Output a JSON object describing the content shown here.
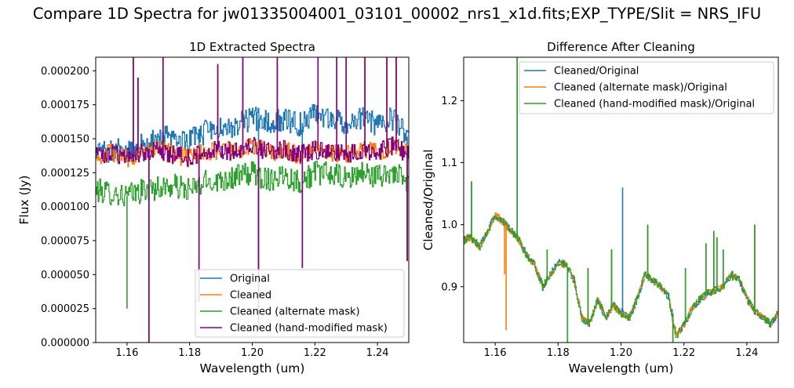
{
  "figure": {
    "suptitle": "Compare 1D Spectra for jw01335004001_03101_00002_nrs1_x1d.fits;EXP_TYPE/Slit = NRS_IFU"
  },
  "chart_data": [
    {
      "type": "line",
      "title": "1D Extracted Spectra",
      "xlabel": "Wavelength (um)",
      "ylabel": "Flux (Jy)",
      "xlim": [
        1.15,
        1.25
      ],
      "ylim": [
        0,
        0.00021
      ],
      "xticks": [
        1.16,
        1.18,
        1.2,
        1.22,
        1.24
      ],
      "xtick_labels": [
        "1.16",
        "1.18",
        "1.20",
        "1.22",
        "1.24"
      ],
      "yticks": [
        0,
        2.5e-05,
        5e-05,
        7.5e-05,
        0.0001,
        0.000125,
        0.00015,
        0.000175,
        0.0002
      ],
      "ytick_labels": [
        "0.000000",
        "0.000025",
        "0.000050",
        "0.000075",
        "0.000100",
        "0.000125",
        "0.000150",
        "0.000175",
        "0.000200"
      ],
      "legend_position": "lower-right",
      "grid": false,
      "spikes": [
        {
          "x": 1.16,
          "y": 2.5e-05,
          "series": [
            2
          ]
        },
        {
          "x": 1.162,
          "y": 0.00021,
          "series": [
            0,
            1,
            3
          ]
        },
        {
          "x": 1.1635,
          "y": 0.000195,
          "series": [
            0,
            1,
            3
          ]
        },
        {
          "x": 1.167,
          "y": 0.0,
          "series": [
            0,
            1,
            2,
            3
          ]
        },
        {
          "x": 1.1715,
          "y": 0.00021,
          "series": [
            0,
            1,
            3
          ]
        },
        {
          "x": 1.183,
          "y": 3e-05,
          "series": [
            0,
            1,
            2,
            3
          ]
        },
        {
          "x": 1.189,
          "y": 0.000205,
          "series": [
            0,
            1,
            3
          ]
        },
        {
          "x": 1.197,
          "y": 0.00021,
          "series": [
            0,
            1,
            3
          ]
        },
        {
          "x": 1.202,
          "y": 1e-05,
          "series": [
            0,
            1,
            2,
            3
          ]
        },
        {
          "x": 1.208,
          "y": 0.00021,
          "series": [
            0,
            1,
            3
          ]
        },
        {
          "x": 1.216,
          "y": 5.5e-05,
          "series": [
            0,
            1,
            2,
            3
          ]
        },
        {
          "x": 1.221,
          "y": 0.00021,
          "series": [
            0,
            1,
            3
          ]
        },
        {
          "x": 1.227,
          "y": 0.00021,
          "series": [
            0,
            1,
            3
          ]
        },
        {
          "x": 1.23,
          "y": 0.00021,
          "series": [
            0,
            1,
            3
          ]
        },
        {
          "x": 1.236,
          "y": 0.00021,
          "series": [
            0,
            1,
            3
          ]
        },
        {
          "x": 1.243,
          "y": 0.00021,
          "series": [
            0,
            1,
            3
          ]
        },
        {
          "x": 1.246,
          "y": 0.00021,
          "series": [
            0,
            1,
            3
          ]
        },
        {
          "x": 1.2495,
          "y": 6e-05,
          "series": [
            0,
            1,
            2,
            3
          ]
        }
      ],
      "series": [
        {
          "name": "Original",
          "color": "#1f77b4",
          "width": 1.2,
          "x": [
            1.15,
            1.155,
            1.16,
            1.165,
            1.17,
            1.175,
            1.18,
            1.185,
            1.19,
            1.195,
            1.2,
            1.205,
            1.21,
            1.215,
            1.22,
            1.225,
            1.23,
            1.235,
            1.24,
            1.245,
            1.25
          ],
          "y": [
            0.00014,
            0.000142,
            0.00014,
            0.000145,
            0.00015,
            0.000152,
            0.000148,
            0.000155,
            0.000158,
            0.00016,
            0.000165,
            0.000162,
            0.000165,
            0.00016,
            0.000168,
            0.000166,
            0.000162,
            0.000165,
            0.00016,
            0.000165,
            0.00015
          ],
          "noise": 9e-06
        },
        {
          "name": "Cleaned",
          "color": "#ff7f0e",
          "width": 1.2,
          "x": [
            1.15,
            1.155,
            1.16,
            1.165,
            1.17,
            1.175,
            1.18,
            1.185,
            1.19,
            1.195,
            1.2,
            1.205,
            1.21,
            1.215,
            1.22,
            1.225,
            1.23,
            1.235,
            1.24,
            1.245,
            1.25
          ],
          "y": [
            0.000138,
            0.00014,
            0.000136,
            0.00014,
            0.000142,
            0.000138,
            0.000136,
            0.00014,
            0.000142,
            0.00014,
            0.000145,
            0.00014,
            0.000142,
            0.000138,
            0.000142,
            0.00014,
            0.000138,
            0.000142,
            0.00014,
            0.000145,
            0.000138
          ],
          "noise": 7e-06
        },
        {
          "name": "Cleaned (alternate mask)",
          "color": "#2ca02c",
          "width": 1.2,
          "x": [
            1.15,
            1.155,
            1.16,
            1.165,
            1.17,
            1.175,
            1.18,
            1.185,
            1.19,
            1.195,
            1.2,
            1.205,
            1.21,
            1.215,
            1.22,
            1.225,
            1.23,
            1.235,
            1.24,
            1.245,
            1.25
          ],
          "y": [
            0.000112,
            0.00011,
            0.000108,
            0.000112,
            0.000114,
            0.000115,
            0.000112,
            0.000118,
            0.00012,
            0.000122,
            0.000125,
            0.00012,
            0.000124,
            0.000118,
            0.000125,
            0.000124,
            0.00012,
            0.000125,
            0.000122,
            0.000126,
            0.000115
          ],
          "noise": 9e-06
        },
        {
          "name": "Cleaned (hand-modified mask)",
          "color": "#800080",
          "width": 1.2,
          "x": [
            1.15,
            1.155,
            1.16,
            1.165,
            1.17,
            1.175,
            1.18,
            1.185,
            1.19,
            1.195,
            1.2,
            1.205,
            1.21,
            1.215,
            1.22,
            1.225,
            1.23,
            1.235,
            1.24,
            1.245,
            1.25
          ],
          "y": [
            0.000138,
            0.00014,
            0.000136,
            0.00014,
            0.000142,
            0.000138,
            0.000136,
            0.00014,
            0.000142,
            0.00014,
            0.000145,
            0.00014,
            0.000142,
            0.000138,
            0.000142,
            0.00014,
            0.000138,
            0.000142,
            0.00014,
            0.000145,
            0.000138
          ],
          "noise": 7e-06
        }
      ]
    },
    {
      "type": "line",
      "title": "Difference After Cleaning",
      "xlabel": "Wavelength (um)",
      "ylabel": "Cleaned/Original",
      "xlim": [
        1.15,
        1.25
      ],
      "ylim": [
        0.81,
        1.27
      ],
      "xticks": [
        1.16,
        1.18,
        1.2,
        1.22,
        1.24
      ],
      "xtick_labels": [
        "1.16",
        "1.18",
        "1.20",
        "1.22",
        "1.24"
      ],
      "yticks": [
        0.9,
        1.0,
        1.1,
        1.2
      ],
      "ytick_labels": [
        "0.9",
        "1.0",
        "1.1",
        "1.2"
      ],
      "legend_position": "top-right",
      "grid": false,
      "spikes": [
        {
          "x": 1.1525,
          "y": 1.07,
          "series": [
            0,
            2
          ]
        },
        {
          "x": 1.163,
          "y": 0.92,
          "series": [
            1
          ]
        },
        {
          "x": 1.1635,
          "y": 0.83,
          "series": [
            1
          ]
        },
        {
          "x": 1.167,
          "y": 1.27,
          "series": [
            0,
            1,
            2
          ]
        },
        {
          "x": 1.1765,
          "y": 0.96,
          "series": [
            0,
            1,
            2
          ]
        },
        {
          "x": 1.183,
          "y": 0.81,
          "series": [
            0,
            2
          ]
        },
        {
          "x": 1.1895,
          "y": 0.93,
          "series": [
            0,
            1,
            2
          ]
        },
        {
          "x": 1.197,
          "y": 0.96,
          "series": [
            0,
            1,
            2
          ]
        },
        {
          "x": 1.2005,
          "y": 1.06,
          "series": [
            0
          ]
        },
        {
          "x": 1.2085,
          "y": 1.0,
          "series": [
            0,
            1,
            2
          ]
        },
        {
          "x": 1.2165,
          "y": 0.81,
          "series": [
            0,
            1,
            2
          ]
        },
        {
          "x": 1.2205,
          "y": 0.93,
          "series": [
            0,
            1,
            2
          ]
        },
        {
          "x": 1.227,
          "y": 0.97,
          "series": [
            0,
            1,
            2
          ]
        },
        {
          "x": 1.2295,
          "y": 0.99,
          "series": [
            0,
            1,
            2
          ]
        },
        {
          "x": 1.2305,
          "y": 0.98,
          "series": [
            0,
            1,
            2
          ]
        },
        {
          "x": 1.2325,
          "y": 0.96,
          "series": [
            0,
            1,
            2
          ]
        },
        {
          "x": 1.2355,
          "y": 0.91,
          "series": [
            0,
            1,
            2
          ]
        },
        {
          "x": 1.2425,
          "y": 1.0,
          "series": [
            0,
            1,
            2
          ]
        }
      ],
      "series": [
        {
          "name": "Cleaned/Original",
          "color": "#1f77b4",
          "width": 1.2,
          "x": [
            1.15,
            1.152,
            1.155,
            1.1575,
            1.16,
            1.1625,
            1.165,
            1.1675,
            1.17,
            1.1725,
            1.175,
            1.1775,
            1.18,
            1.1825,
            1.185,
            1.1875,
            1.19,
            1.1925,
            1.195,
            1.1975,
            1.2,
            1.2025,
            1.205,
            1.2075,
            1.21,
            1.2125,
            1.215,
            1.2175,
            1.22,
            1.2225,
            1.225,
            1.2275,
            1.23,
            1.2325,
            1.235,
            1.2375,
            1.24,
            1.2425,
            1.245,
            1.2475,
            1.25
          ],
          "y": [
            0.975,
            0.98,
            0.965,
            0.99,
            1.015,
            1.005,
            0.99,
            0.975,
            0.95,
            0.935,
            0.9,
            0.92,
            0.94,
            0.935,
            0.91,
            0.85,
            0.84,
            0.88,
            0.85,
            0.87,
            0.86,
            0.85,
            0.88,
            0.92,
            0.91,
            0.9,
            0.885,
            0.82,
            0.84,
            0.865,
            0.88,
            0.89,
            0.895,
            0.9,
            0.92,
            0.91,
            0.88,
            0.86,
            0.85,
            0.84,
            0.86
          ],
          "noise": 0.006
        },
        {
          "name": "Cleaned (alternate mask)/Original",
          "color": "#ff7f0e",
          "width": 1.2,
          "x": [
            1.15,
            1.152,
            1.155,
            1.1575,
            1.16,
            1.1625,
            1.165,
            1.1675,
            1.17,
            1.1725,
            1.175,
            1.1775,
            1.18,
            1.1825,
            1.185,
            1.1875,
            1.19,
            1.1925,
            1.195,
            1.1975,
            1.2,
            1.2025,
            1.205,
            1.2075,
            1.21,
            1.2125,
            1.215,
            1.2175,
            1.22,
            1.2225,
            1.225,
            1.2275,
            1.23,
            1.2325,
            1.235,
            1.2375,
            1.24,
            1.2425,
            1.245,
            1.2475,
            1.25
          ],
          "y": [
            0.975,
            0.98,
            0.965,
            0.99,
            1.015,
            1.005,
            0.99,
            0.975,
            0.95,
            0.935,
            0.9,
            0.92,
            0.94,
            0.935,
            0.91,
            0.85,
            0.84,
            0.88,
            0.85,
            0.87,
            0.855,
            0.85,
            0.88,
            0.92,
            0.91,
            0.9,
            0.885,
            0.82,
            0.84,
            0.865,
            0.88,
            0.89,
            0.895,
            0.9,
            0.92,
            0.91,
            0.88,
            0.86,
            0.85,
            0.84,
            0.86
          ],
          "noise": 0.006
        },
        {
          "name": "Cleaned (hand-modified mask)/Original",
          "color": "#2ca02c",
          "width": 1.2,
          "x": [
            1.15,
            1.152,
            1.155,
            1.1575,
            1.16,
            1.1625,
            1.165,
            1.1675,
            1.17,
            1.1725,
            1.175,
            1.1775,
            1.18,
            1.1825,
            1.185,
            1.1875,
            1.19,
            1.1925,
            1.195,
            1.1975,
            1.2,
            1.2025,
            1.205,
            1.2075,
            1.21,
            1.2125,
            1.215,
            1.2175,
            1.22,
            1.2225,
            1.225,
            1.2275,
            1.23,
            1.2325,
            1.235,
            1.2375,
            1.24,
            1.2425,
            1.245,
            1.2475,
            1.25
          ],
          "y": [
            0.975,
            0.98,
            0.965,
            0.99,
            1.015,
            1.005,
            0.99,
            0.975,
            0.95,
            0.935,
            0.9,
            0.92,
            0.94,
            0.935,
            0.91,
            0.85,
            0.84,
            0.88,
            0.85,
            0.87,
            0.855,
            0.85,
            0.88,
            0.92,
            0.91,
            0.9,
            0.885,
            0.82,
            0.84,
            0.865,
            0.88,
            0.89,
            0.895,
            0.9,
            0.92,
            0.91,
            0.88,
            0.86,
            0.85,
            0.84,
            0.86
          ],
          "noise": 0.006
        }
      ]
    }
  ]
}
